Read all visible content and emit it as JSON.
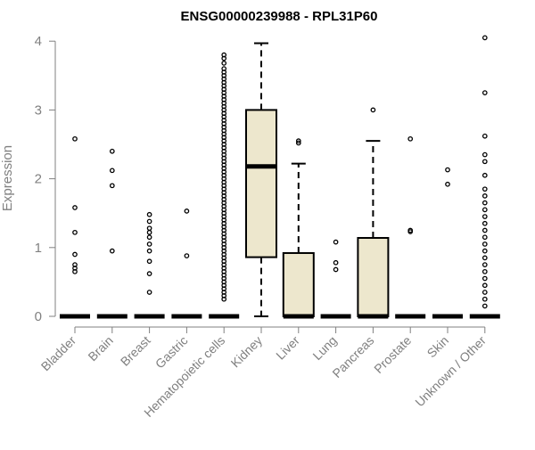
{
  "chart_data": {
    "type": "box",
    "title": "ENSG00000239988 - RPL31P60",
    "ylabel": "Expression",
    "xlabel": "",
    "ylim": [
      0,
      4.1
    ],
    "yticks": [
      0,
      1,
      2,
      3,
      4
    ],
    "grid": false,
    "colors": {
      "box_fill": "#ede7cd",
      "stroke": "#000000",
      "axis_text": "#808080",
      "title": "#000000"
    },
    "categories": [
      "Bladder",
      "Brain",
      "Breast",
      "Gastric",
      "Hematopoietic cells",
      "Kidney",
      "Liver",
      "Lung",
      "Pancreas",
      "Prostate",
      "Skin",
      "Unknown / Other"
    ],
    "boxes": [
      {
        "label": "Bladder",
        "min": 0,
        "q1": 0,
        "median": 0,
        "q3": 0,
        "max": 0,
        "outliers": [
          0.65,
          0.7,
          0.75,
          0.9,
          1.22,
          1.58,
          2.58
        ]
      },
      {
        "label": "Brain",
        "min": 0,
        "q1": 0,
        "median": 0,
        "q3": 0,
        "max": 0,
        "outliers": [
          0.95,
          1.9,
          2.12,
          2.4
        ]
      },
      {
        "label": "Breast",
        "min": 0,
        "q1": 0,
        "median": 0,
        "q3": 0,
        "max": 0,
        "outliers": [
          0.35,
          0.62,
          0.8,
          0.95,
          1.05,
          1.15,
          1.22,
          1.28,
          1.38,
          1.48
        ]
      },
      {
        "label": "Gastric",
        "min": 0,
        "q1": 0,
        "median": 0,
        "q3": 0,
        "max": 0,
        "outliers": [
          0.88,
          1.53
        ]
      },
      {
        "label": "Hematopoietic cells",
        "min": 0,
        "q1": 0,
        "median": 0,
        "q3": 0,
        "max": 0,
        "outliers": [
          0.25,
          0.3,
          0.35,
          0.4,
          0.45,
          0.5,
          0.55,
          0.6,
          0.65,
          0.7,
          0.75,
          0.8,
          0.85,
          0.9,
          0.95,
          1.0,
          1.05,
          1.1,
          1.15,
          1.2,
          1.25,
          1.3,
          1.35,
          1.4,
          1.45,
          1.5,
          1.55,
          1.6,
          1.65,
          1.7,
          1.75,
          1.8,
          1.85,
          1.9,
          1.95,
          2.0,
          2.05,
          2.1,
          2.15,
          2.2,
          2.25,
          2.3,
          2.35,
          2.4,
          2.45,
          2.5,
          2.55,
          2.6,
          2.65,
          2.7,
          2.75,
          2.8,
          2.85,
          2.9,
          2.95,
          3.0,
          3.05,
          3.1,
          3.15,
          3.2,
          3.25,
          3.3,
          3.35,
          3.4,
          3.45,
          3.5,
          3.55,
          3.6,
          3.68,
          3.75,
          3.8
        ]
      },
      {
        "label": "Kidney",
        "min": 0,
        "q1": 0.86,
        "median": 2.18,
        "q3": 3.0,
        "max": 3.97,
        "outliers": []
      },
      {
        "label": "Liver",
        "min": 0,
        "q1": 0,
        "median": 0,
        "q3": 0.92,
        "max": 2.22,
        "outliers": [
          2.52,
          2.55
        ]
      },
      {
        "label": "Lung",
        "min": 0,
        "q1": 0,
        "median": 0,
        "q3": 0,
        "max": 0,
        "outliers": [
          0.68,
          0.78,
          1.08
        ]
      },
      {
        "label": "Pancreas",
        "min": 0,
        "q1": 0,
        "median": 0,
        "q3": 1.14,
        "max": 2.55,
        "outliers": [
          3.0
        ]
      },
      {
        "label": "Prostate",
        "min": 0,
        "q1": 0,
        "median": 0,
        "q3": 0,
        "max": 0,
        "outliers": [
          1.23,
          1.25,
          2.58
        ]
      },
      {
        "label": "Skin",
        "min": 0,
        "q1": 0,
        "median": 0,
        "q3": 0,
        "max": 0,
        "outliers": [
          1.92,
          2.13
        ]
      },
      {
        "label": "Unknown / Other",
        "min": 0,
        "q1": 0,
        "median": 0,
        "q3": 0,
        "max": 0,
        "outliers": [
          0.15,
          0.25,
          0.35,
          0.45,
          0.55,
          0.65,
          0.75,
          0.85,
          0.95,
          1.05,
          1.15,
          1.25,
          1.35,
          1.45,
          1.55,
          1.65,
          1.75,
          1.85,
          2.05,
          2.25,
          2.35,
          2.62,
          3.25,
          4.05
        ]
      }
    ]
  }
}
